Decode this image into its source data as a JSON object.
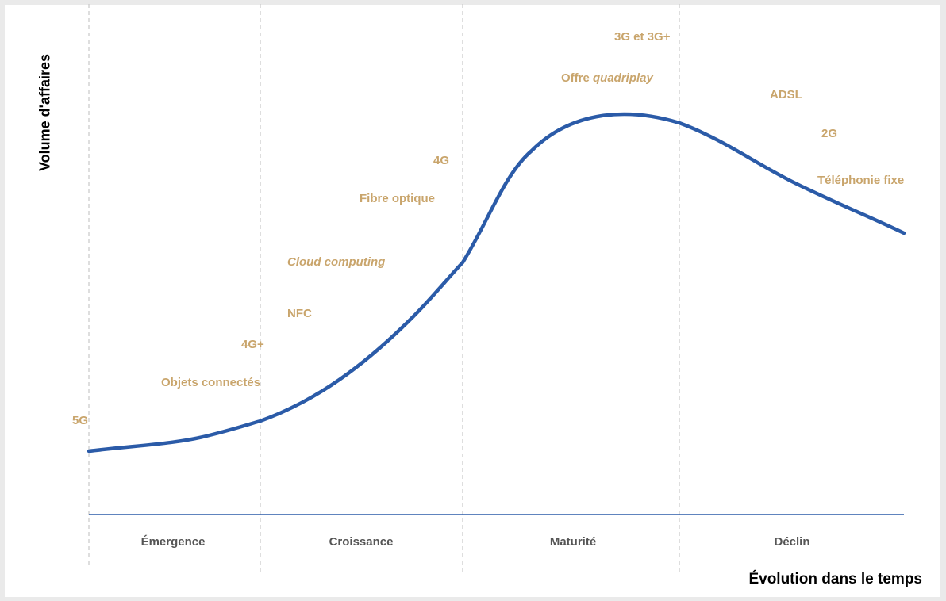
{
  "axes": {
    "y_label": "Volume d'affaires",
    "x_label": "Évolution dans le temps"
  },
  "phases": [
    "Émergence",
    "Croissance",
    "Maturité",
    "Déclin"
  ],
  "technologies": {
    "5g": "5G",
    "objets_connectes": "Objets connectés",
    "4g_plus": "4G+",
    "nfc": "NFC",
    "cloud_computing": "Cloud computing",
    "fibre_optique": "Fibre optique",
    "4g": "4G",
    "offre_prefix": "Offre ",
    "offre_italic": "quadriplay",
    "3g": "3G et 3G+",
    "adsl": "ADSL",
    "2g": "2G",
    "telephonie_fixe": "Téléphonie fixe"
  },
  "colors": {
    "curve": "#2b5ba8",
    "axis": "#2b5ba8",
    "tech_label": "#c9a56c",
    "phase_label": "#555555",
    "divider": "#c8c8c8"
  }
}
